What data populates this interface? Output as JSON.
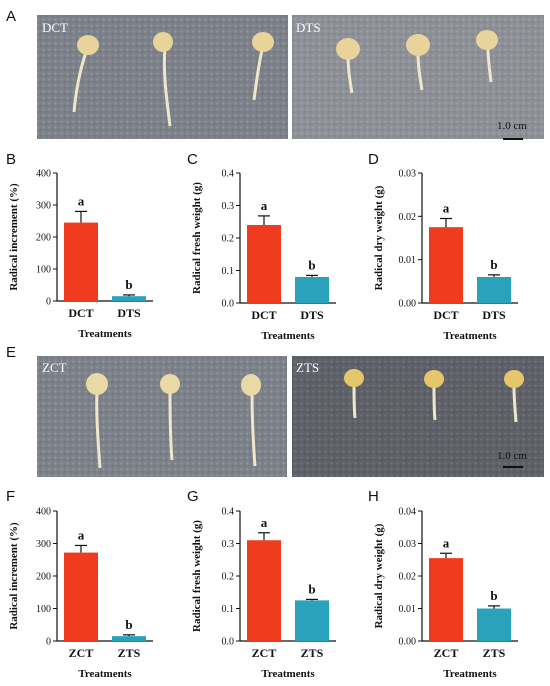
{
  "colors": {
    "control": "#f03c1e",
    "stress": "#2aa2bb",
    "photo_bg": "#7b7f86",
    "seed": "#e8d9a6",
    "root": "#efe6cc"
  },
  "panels": {
    "A": {
      "letter": "A",
      "left_label": "DCT",
      "right_label": "DTS",
      "scale": "1.0 cm"
    },
    "E": {
      "letter": "E",
      "left_label": "ZCT",
      "right_label": "ZTS",
      "scale": "1.0 cm"
    }
  },
  "chart_data": [
    {
      "panel": "B",
      "type": "bar",
      "categories": [
        "DCT",
        "DTS"
      ],
      "values": [
        245,
        15
      ],
      "errors": [
        35,
        4
      ],
      "letters": [
        "a",
        "b"
      ],
      "xlabel": "Treatments",
      "ylabel": "Radical increment (%)",
      "ylim": [
        0,
        400
      ],
      "yticks": [
        "0",
        "100",
        "200",
        "300",
        "400"
      ]
    },
    {
      "panel": "C",
      "type": "bar",
      "categories": [
        "DCT",
        "DTS"
      ],
      "values": [
        0.24,
        0.08
      ],
      "errors": [
        0.028,
        0.005
      ],
      "letters": [
        "a",
        "b"
      ],
      "xlabel": "Treatments",
      "ylabel": "Radical fresh weight (g)",
      "ylim": [
        0,
        0.4
      ],
      "yticks": [
        "0.0",
        "0.1",
        "0.2",
        "0.3",
        "0.4"
      ]
    },
    {
      "panel": "D",
      "type": "bar",
      "categories": [
        "DCT",
        "DTS"
      ],
      "values": [
        0.0175,
        0.006
      ],
      "errors": [
        0.002,
        0.0005
      ],
      "letters": [
        "a",
        "b"
      ],
      "xlabel": "Treatments",
      "ylabel": "Radical dry weight (g)",
      "ylim": [
        0,
        0.03
      ],
      "yticks": [
        "0.00",
        "0.01",
        "0.02",
        "0.03"
      ]
    },
    {
      "panel": "F",
      "type": "bar",
      "categories": [
        "ZCT",
        "ZTS"
      ],
      "values": [
        272,
        15
      ],
      "errors": [
        22,
        4
      ],
      "letters": [
        "a",
        "b"
      ],
      "xlabel": "Treatments",
      "ylabel": "Radical increment (%)",
      "ylim": [
        0,
        400
      ],
      "yticks": [
        "0",
        "100",
        "200",
        "300",
        "400"
      ]
    },
    {
      "panel": "G",
      "type": "bar",
      "categories": [
        "ZCT",
        "ZTS"
      ],
      "values": [
        0.31,
        0.125
      ],
      "errors": [
        0.023,
        0.003
      ],
      "letters": [
        "a",
        "b"
      ],
      "xlabel": "Treatments",
      "ylabel": "Radical fresh weight (g)",
      "ylim": [
        0,
        0.4
      ],
      "yticks": [
        "0.0",
        "0.1",
        "0.2",
        "0.3",
        "0.4"
      ]
    },
    {
      "panel": "H",
      "type": "bar",
      "categories": [
        "ZCT",
        "ZTS"
      ],
      "values": [
        0.0255,
        0.01
      ],
      "errors": [
        0.0015,
        0.0008
      ],
      "letters": [
        "a",
        "b"
      ],
      "xlabel": "Treatments",
      "ylabel": "Radical dry weight (g)",
      "ylim": [
        0,
        0.04
      ],
      "yticks": [
        "0.00",
        "0.01",
        "0.02",
        "0.03",
        "0.04"
      ]
    }
  ]
}
